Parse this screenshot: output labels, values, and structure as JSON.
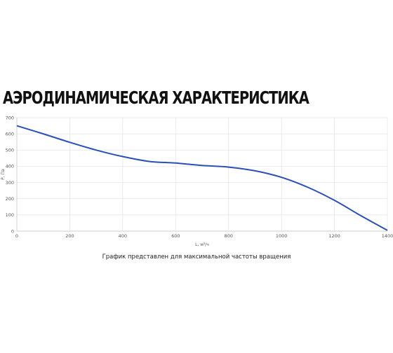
{
  "heading": "АЭРОДИНАМИЧЕСКАЯ ХАРАКТЕРИСТИКА",
  "caption": "График представлен для максимальной частоты вращения",
  "colors": {
    "line": "#2a4fb8",
    "grid": "#e3e3e3",
    "axis": "#bdbdbd"
  },
  "chart_data": {
    "type": "line",
    "xlabel": "L, м³/ч",
    "ylabel": "P, Па",
    "xlim": [
      0,
      1400
    ],
    "ylim": [
      0,
      700
    ],
    "x_ticks": [
      0,
      200,
      400,
      600,
      800,
      1000,
      1200,
      1400
    ],
    "y_ticks": [
      0,
      100,
      200,
      300,
      400,
      500,
      600,
      700
    ],
    "grid": true,
    "series": [
      {
        "x": [
          0,
          100,
          200,
          300,
          400,
          500,
          600,
          700,
          800,
          900,
          1000,
          1100,
          1200,
          1300,
          1400
        ],
        "values": [
          650,
          600,
          548,
          500,
          460,
          430,
          420,
          405,
          395,
          372,
          332,
          270,
          190,
          95,
          5
        ]
      }
    ]
  }
}
